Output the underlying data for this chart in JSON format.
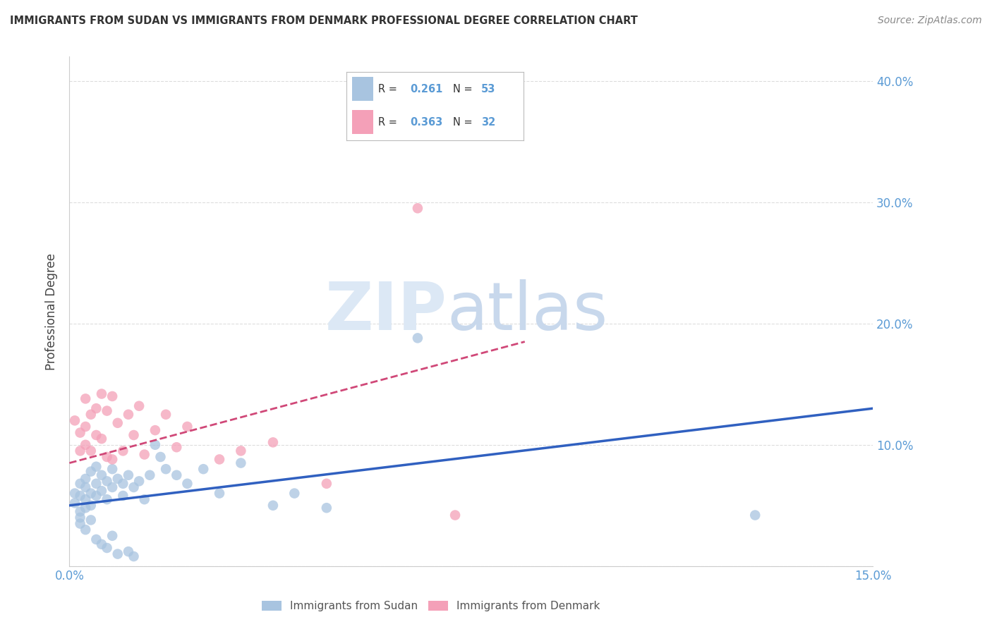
{
  "title": "IMMIGRANTS FROM SUDAN VS IMMIGRANTS FROM DENMARK PROFESSIONAL DEGREE CORRELATION CHART",
  "source": "Source: ZipAtlas.com",
  "ylabel": "Professional Degree",
  "xlim": [
    0.0,
    0.15
  ],
  "ylim": [
    0.0,
    0.42
  ],
  "sudan_color": "#a8c4e0",
  "denmark_color": "#f4a0b8",
  "sudan_line_color": "#3060c0",
  "denmark_line_color": "#d04878",
  "axis_label_color": "#5b9bd5",
  "background_color": "#ffffff",
  "grid_color": "#dddddd",
  "sudan_scatter_x": [
    0.001,
    0.001,
    0.002,
    0.002,
    0.002,
    0.002,
    0.002,
    0.003,
    0.003,
    0.003,
    0.003,
    0.003,
    0.004,
    0.004,
    0.004,
    0.004,
    0.005,
    0.005,
    0.005,
    0.005,
    0.006,
    0.006,
    0.006,
    0.007,
    0.007,
    0.007,
    0.008,
    0.008,
    0.008,
    0.009,
    0.009,
    0.01,
    0.01,
    0.011,
    0.011,
    0.012,
    0.012,
    0.013,
    0.014,
    0.015,
    0.016,
    0.017,
    0.018,
    0.02,
    0.022,
    0.025,
    0.028,
    0.032,
    0.038,
    0.042,
    0.048,
    0.128,
    0.065
  ],
  "sudan_scatter_y": [
    0.06,
    0.052,
    0.068,
    0.058,
    0.045,
    0.04,
    0.035,
    0.072,
    0.065,
    0.055,
    0.048,
    0.03,
    0.078,
    0.06,
    0.05,
    0.038,
    0.082,
    0.068,
    0.058,
    0.022,
    0.075,
    0.062,
    0.018,
    0.07,
    0.055,
    0.015,
    0.08,
    0.065,
    0.025,
    0.072,
    0.01,
    0.068,
    0.058,
    0.075,
    0.012,
    0.065,
    0.008,
    0.07,
    0.055,
    0.075,
    0.1,
    0.09,
    0.08,
    0.075,
    0.068,
    0.08,
    0.06,
    0.085,
    0.05,
    0.06,
    0.048,
    0.042,
    0.188
  ],
  "denmark_scatter_x": [
    0.001,
    0.002,
    0.002,
    0.003,
    0.003,
    0.003,
    0.004,
    0.004,
    0.005,
    0.005,
    0.006,
    0.006,
    0.007,
    0.007,
    0.008,
    0.008,
    0.009,
    0.01,
    0.011,
    0.012,
    0.013,
    0.014,
    0.016,
    0.018,
    0.02,
    0.022,
    0.028,
    0.032,
    0.038,
    0.048,
    0.072,
    0.065
  ],
  "denmark_scatter_y": [
    0.12,
    0.11,
    0.095,
    0.138,
    0.115,
    0.1,
    0.125,
    0.095,
    0.13,
    0.108,
    0.142,
    0.105,
    0.128,
    0.09,
    0.14,
    0.088,
    0.118,
    0.095,
    0.125,
    0.108,
    0.132,
    0.092,
    0.112,
    0.125,
    0.098,
    0.115,
    0.088,
    0.095,
    0.102,
    0.068,
    0.042,
    0.295
  ],
  "sudan_line_x": [
    0.0,
    0.15
  ],
  "sudan_line_y": [
    0.05,
    0.13
  ],
  "denmark_line_x": [
    0.0,
    0.085
  ],
  "denmark_line_y": [
    0.085,
    0.185
  ],
  "legend_sudan_R": "0.261",
  "legend_sudan_N": "53",
  "legend_denmark_R": "0.363",
  "legend_denmark_N": "32",
  "legend_text_color": "#333333",
  "legend_value_color": "#5b9bd5"
}
